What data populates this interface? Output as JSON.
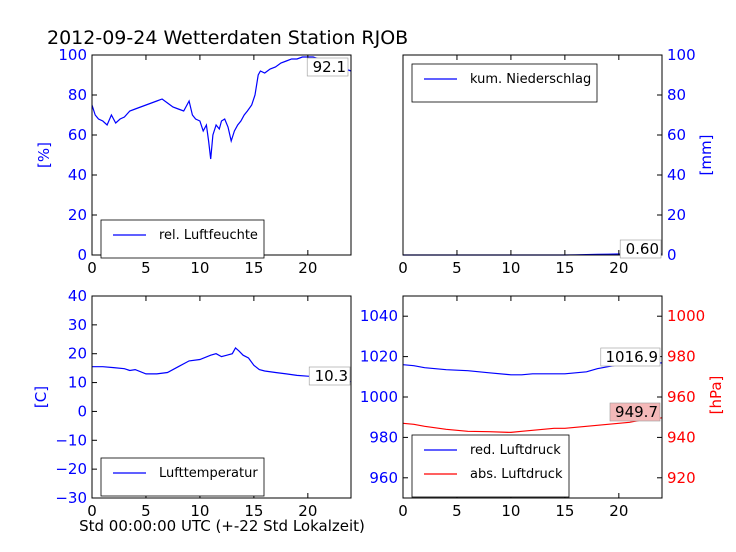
{
  "title": "2012-09-24 Wetterdaten Station RJOB",
  "xlabel": "Std 00:00:00 UTC (+-22 Std Lokalzeit)",
  "colors": {
    "blue": "#0000ff",
    "red": "#ff0000",
    "axis_blue": "#0000ff",
    "axis_red": "#ff0000"
  },
  "chart_data": [
    {
      "id": "humidity",
      "type": "line",
      "ylabel": "[%]",
      "xlim": [
        0,
        24
      ],
      "ylim": [
        0,
        100
      ],
      "xticks": [
        0,
        5,
        10,
        15,
        20
      ],
      "yticks": [
        0,
        20,
        40,
        60,
        80,
        100
      ],
      "legend": "rel. Luftfeuchte",
      "legend_position": "lower-left",
      "value_label": "92.1",
      "series": [
        {
          "name": "rel. Luftfeuchte",
          "color": "#0000ff",
          "x": [
            0,
            0.3,
            0.6,
            1,
            1.4,
            1.8,
            2.2,
            2.6,
            3,
            3.5,
            4,
            4.5,
            5,
            5.5,
            6,
            6.5,
            7,
            7.5,
            8,
            8.5,
            9,
            9.3,
            9.6,
            10,
            10.3,
            10.6,
            10.8,
            11,
            11.2,
            11.5,
            11.8,
            12,
            12.3,
            12.6,
            12.9,
            13.2,
            13.5,
            13.8,
            14.1,
            14.4,
            14.8,
            15.1,
            15.4,
            15.6,
            16,
            16.5,
            17,
            17.5,
            18,
            18.5,
            19,
            19.5,
            20,
            20.5,
            21,
            21.5,
            22,
            22.5,
            23,
            23.5,
            24
          ],
          "y": [
            75,
            70,
            68,
            67,
            65,
            70,
            66,
            68,
            69,
            72,
            73,
            74,
            75,
            76,
            77,
            78,
            76,
            74,
            73,
            72,
            77,
            70,
            68,
            67,
            62,
            65,
            57,
            48,
            60,
            65,
            63,
            67,
            68,
            64,
            57,
            62,
            65,
            67,
            70,
            72,
            75,
            80,
            90,
            92,
            91,
            93,
            94,
            96,
            97,
            98,
            98,
            99,
            99,
            99,
            98,
            97,
            96,
            95,
            94,
            93,
            92
          ]
        }
      ]
    },
    {
      "id": "precip",
      "type": "line",
      "ylabel": "[mm]",
      "y_axis_side": "right",
      "xlim": [
        0,
        24
      ],
      "ylim": [
        0,
        100
      ],
      "xticks": [
        0,
        5,
        10,
        15,
        20
      ],
      "yticks": [
        0,
        20,
        40,
        60,
        80,
        100
      ],
      "legend": "kum. Niederschlag",
      "legend_position": "upper-left",
      "value_label": "0.60",
      "series": [
        {
          "name": "kum. Niederschlag",
          "color": "#0000ff",
          "x": [
            0,
            5,
            10,
            15,
            16,
            18,
            19,
            20,
            22,
            24
          ],
          "y": [
            0,
            0,
            0,
            0,
            0.1,
            0.3,
            0.4,
            0.5,
            0.6,
            0.6
          ]
        }
      ]
    },
    {
      "id": "temperature",
      "type": "line",
      "ylabel": "[C]",
      "xlim": [
        0,
        24
      ],
      "ylim": [
        -30,
        40
      ],
      "xticks": [
        0,
        5,
        10,
        15,
        20
      ],
      "yticks": [
        -30,
        -20,
        -10,
        0,
        10,
        20,
        30,
        40
      ],
      "legend": "Lufttemperatur",
      "legend_position": "lower-left",
      "value_label": "10.3",
      "series": [
        {
          "name": "Lufttemperatur",
          "color": "#0000ff",
          "x": [
            0,
            1,
            2,
            3,
            3.5,
            4,
            5,
            6,
            7,
            8,
            9,
            10,
            11,
            11.5,
            12,
            12.5,
            13,
            13.3,
            13.6,
            14,
            14.5,
            15,
            15.5,
            16,
            17,
            18,
            19,
            20,
            21,
            22,
            23,
            24
          ],
          "y": [
            15.5,
            15.5,
            15.2,
            14.8,
            14.2,
            14.5,
            13,
            13,
            13.5,
            15.5,
            17.5,
            18,
            19.5,
            20,
            19,
            19.5,
            20,
            22,
            21,
            19.5,
            18.5,
            16,
            14.5,
            14,
            13.5,
            13,
            12.5,
            12.2,
            12,
            11.5,
            11,
            10.3
          ]
        }
      ]
    },
    {
      "id": "pressure",
      "type": "line",
      "ylabel": "[hPa]",
      "xlim": [
        0,
        24
      ],
      "ylim_left": [
        950,
        1050
      ],
      "ylim_right": [
        910,
        1010
      ],
      "xticks": [
        0,
        5,
        10,
        15,
        20
      ],
      "yticks_left": [
        960,
        980,
        1000,
        1020,
        1040
      ],
      "yticks_right": [
        920,
        940,
        960,
        980,
        1000
      ],
      "legend": [
        "red. Luftdruck",
        "abs. Luftdruck"
      ],
      "legend_position": "lower-left",
      "value_labels": [
        "1016.9",
        "949.7"
      ],
      "series": [
        {
          "name": "red. Luftdruck",
          "color": "#0000ff",
          "axis": "left",
          "x": [
            0,
            1,
            2,
            4,
            6,
            8,
            10,
            11,
            12,
            13,
            14,
            15,
            16,
            17,
            18,
            19,
            20,
            21,
            22,
            23,
            24
          ],
          "y": [
            1016,
            1015.5,
            1014.5,
            1013.5,
            1013,
            1012,
            1011,
            1011,
            1011.5,
            1011.5,
            1011.5,
            1011.5,
            1012,
            1012.5,
            1014,
            1015,
            1016,
            1016.3,
            1016.6,
            1016.8,
            1016.9
          ]
        },
        {
          "name": "abs. Luftdruck",
          "color": "#ff0000",
          "axis": "right",
          "x": [
            0,
            1,
            2,
            4,
            6,
            8,
            10,
            11,
            12,
            13,
            14,
            15,
            16,
            17,
            18,
            19,
            20,
            21,
            22,
            23,
            24
          ],
          "y": [
            947,
            946.5,
            945.5,
            944,
            943,
            942.8,
            942.5,
            943,
            943.5,
            944,
            944.5,
            944.5,
            945,
            945.5,
            946,
            946.5,
            947,
            947.5,
            948.5,
            949,
            949.7
          ]
        }
      ]
    }
  ]
}
